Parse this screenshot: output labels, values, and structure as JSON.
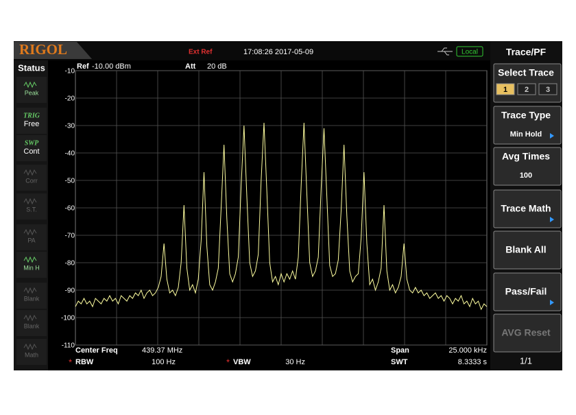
{
  "header": {
    "brand": "RIGOL",
    "ref_source": "Ext Ref",
    "datetime": "17:08:26 2017-05-09",
    "remote": "Local"
  },
  "status": {
    "title": "Status",
    "items": [
      {
        "label": "Peak"
      },
      {
        "tag": "TRIG",
        "label": "Free"
      },
      {
        "tag": "SWP",
        "label": "Cont"
      },
      {
        "label": "Corr"
      },
      {
        "label": "S.T."
      },
      {
        "label": "PA"
      },
      {
        "label": "Min H"
      },
      {
        "label": "Blank"
      },
      {
        "label": "Blank"
      },
      {
        "label": "Math"
      }
    ]
  },
  "chart_data": {
    "type": "line",
    "ref_label": "Ref",
    "ref_value": "-10.00 dBm",
    "att_label": "Att",
    "att_value": "20 dB",
    "ylim": [
      -110,
      -10
    ],
    "yticks": [
      -10,
      -20,
      -30,
      -40,
      -50,
      -60,
      -70,
      -80,
      -90,
      -100,
      -110
    ],
    "grid": true,
    "color": "#ffffa0",
    "values": [
      -96,
      -94,
      -95,
      -93,
      -95,
      -94,
      -96,
      -93,
      -94,
      -95,
      -93,
      -94,
      -92,
      -94,
      -93,
      -95,
      -92,
      -93,
      -94,
      -92,
      -93,
      -91,
      -92,
      -90,
      -93,
      -91,
      -90,
      -92,
      -91,
      -89,
      -85,
      -73,
      -86,
      -91,
      -90,
      -92,
      -89,
      -80,
      -59,
      -82,
      -90,
      -88,
      -91,
      -86,
      -72,
      -47,
      -74,
      -88,
      -90,
      -87,
      -82,
      -60,
      -37,
      -64,
      -84,
      -87,
      -84,
      -78,
      -52,
      -30,
      -56,
      -80,
      -85,
      -83,
      -77,
      -50,
      -29,
      -54,
      -80,
      -87,
      -85,
      -88,
      -84,
      -87,
      -84,
      -86,
      -83,
      -86,
      -78,
      -52,
      -29,
      -55,
      -80,
      -85,
      -83,
      -78,
      -53,
      -31,
      -56,
      -81,
      -85,
      -84,
      -79,
      -61,
      -37,
      -63,
      -83,
      -87,
      -85,
      -84,
      -71,
      -47,
      -73,
      -88,
      -86,
      -90,
      -87,
      -82,
      -59,
      -83,
      -90,
      -88,
      -91,
      -89,
      -85,
      -73,
      -86,
      -90,
      -91,
      -89,
      -91,
      -90,
      -92,
      -91,
      -93,
      -92,
      -91,
      -93,
      -92,
      -94,
      -92,
      -93,
      -95,
      -93,
      -94,
      -92,
      -95,
      -94,
      -96,
      -93,
      -95,
      -94,
      -97,
      -95,
      -96
    ]
  },
  "settings": {
    "center_freq": {
      "label": "Center Freq",
      "value": "439.37 MHz"
    },
    "span": {
      "label": "Span",
      "value": "25.000 kHz"
    },
    "rbw": {
      "flag": "*",
      "label": "RBW",
      "value": "100 Hz"
    },
    "vbw": {
      "flag": "*",
      "label": "VBW",
      "value": "30 Hz"
    },
    "swt": {
      "label": "SWT",
      "value": "8.3333 s"
    }
  },
  "menu": {
    "title": "Trace/PF",
    "select_trace": {
      "label": "Select Trace",
      "options": [
        1,
        2,
        3
      ]
    },
    "buttons": [
      {
        "label": "Trace Type",
        "value": "Min Hold"
      },
      {
        "label": "Avg Times",
        "value": "100"
      },
      {
        "label": "Trace Math"
      },
      {
        "label": "Blank All"
      },
      {
        "label": "Pass/Fail"
      },
      {
        "label": "AVG Reset"
      }
    ],
    "page": "1/1"
  }
}
